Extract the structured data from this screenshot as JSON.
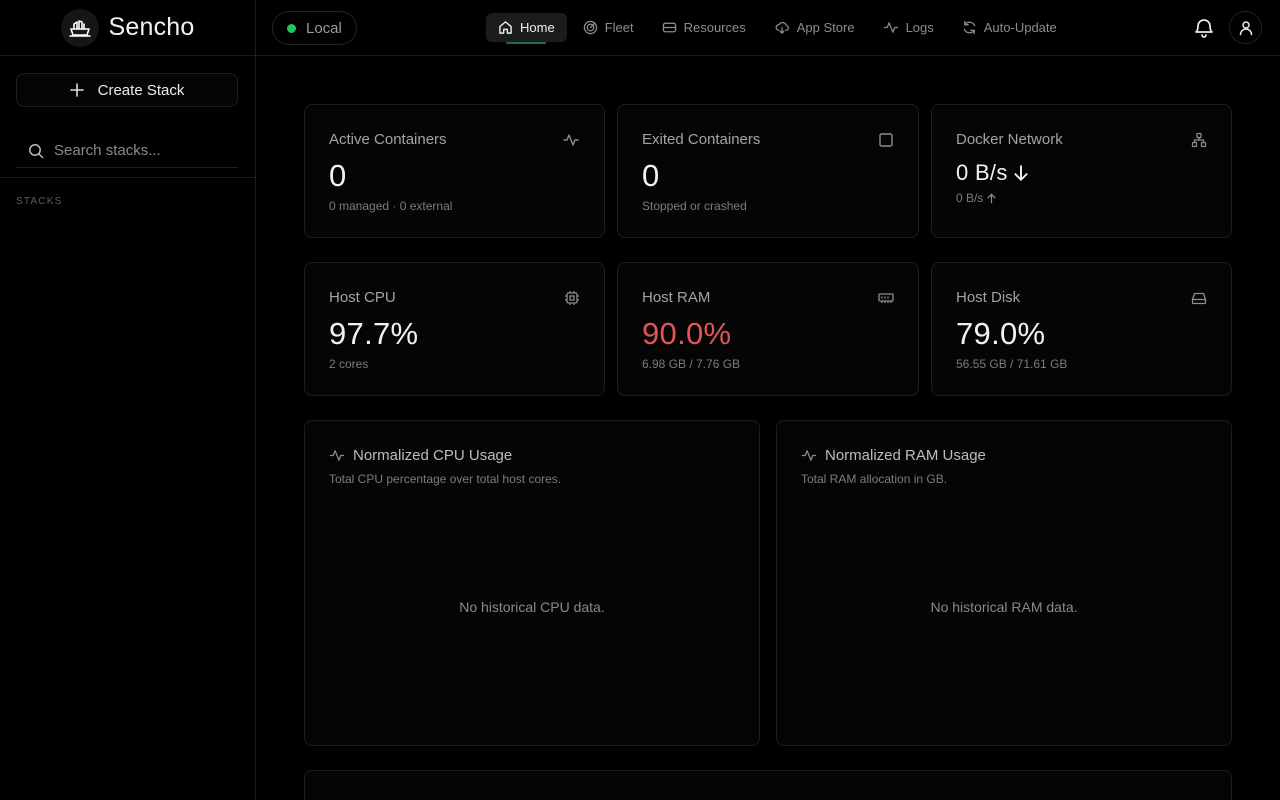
{
  "brand": {
    "name": "Sencho"
  },
  "sidebar": {
    "create_label": "Create Stack",
    "search_placeholder": "Search stacks...",
    "section_label": "STACKS"
  },
  "topbar": {
    "node_label": "Local",
    "node_status_color": "#22c55e",
    "nav": [
      {
        "label": "Home",
        "icon": "home-icon",
        "active": true
      },
      {
        "label": "Fleet",
        "icon": "radar-icon"
      },
      {
        "label": "Resources",
        "icon": "hard-drive-icon"
      },
      {
        "label": "App Store",
        "icon": "cloud-download-icon"
      },
      {
        "label": "Logs",
        "icon": "activity-icon"
      },
      {
        "label": "Auto-Update",
        "icon": "refresh-icon"
      }
    ]
  },
  "stats": {
    "active": {
      "title": "Active Containers",
      "value": "0",
      "sub": "0 managed · 0 external"
    },
    "exited": {
      "title": "Exited Containers",
      "value": "0",
      "sub": "Stopped or crashed"
    },
    "network": {
      "title": "Docker Network",
      "value": "0 B/s",
      "sub": "0 B/s"
    },
    "cpu": {
      "title": "Host CPU",
      "value": "97.7%",
      "sub": "2 cores"
    },
    "ram": {
      "title": "Host RAM",
      "value": "90.0%",
      "sub": "6.98 GB / 7.76 GB",
      "value_color": "#e05555"
    },
    "disk": {
      "title": "Host Disk",
      "value": "79.0%",
      "sub": "56.55 GB / 71.61 GB"
    }
  },
  "charts": {
    "cpu": {
      "title": "Normalized CPU Usage",
      "subtitle": "Total CPU percentage over total host cores.",
      "empty": "No historical CPU data."
    },
    "ram": {
      "title": "Normalized RAM Usage",
      "subtitle": "Total RAM allocation in GB.",
      "empty": "No historical RAM data."
    }
  }
}
